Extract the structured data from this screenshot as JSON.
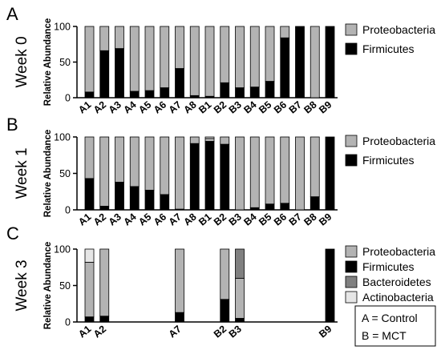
{
  "colors": {
    "Proteobacteria": "#b3b3b3",
    "Firmicutes": "#000000",
    "Bacteroidetes": "#808080",
    "Actinobacteria": "#e6e6e6"
  },
  "key": [
    "A = Control",
    "B = MCT"
  ],
  "chart_data": [
    {
      "type": "bar",
      "stacked": true,
      "panel": "A",
      "week_label": "Week 0",
      "ylabel": "Relative Abundance",
      "ylim": [
        0,
        100
      ],
      "yticks": [
        0,
        50,
        100
      ],
      "legend": "right",
      "categories": [
        "A1",
        "A2",
        "A3",
        "A4",
        "A5",
        "A6",
        "A7",
        "A8",
        "B1",
        "B2",
        "B3",
        "B4",
        "B5",
        "B6",
        "B7",
        "B8",
        "B9"
      ],
      "series": [
        {
          "name": "Firmicutes",
          "values": [
            8,
            66,
            69,
            9,
            10,
            14,
            41,
            3,
            2,
            21,
            14,
            15,
            23,
            84,
            100,
            0,
            100
          ]
        },
        {
          "name": "Proteobacteria",
          "values": [
            92,
            34,
            31,
            91,
            90,
            86,
            59,
            97,
            98,
            79,
            86,
            85,
            77,
            16,
            0,
            100,
            0
          ]
        }
      ]
    },
    {
      "type": "bar",
      "stacked": true,
      "panel": "B",
      "week_label": "Week 1",
      "ylabel": "Relative Abundance",
      "ylim": [
        0,
        100
      ],
      "yticks": [
        0,
        50,
        100
      ],
      "legend": "right",
      "categories": [
        "A1",
        "A2",
        "A3",
        "A4",
        "A5",
        "A6",
        "A7",
        "A8",
        "B1",
        "B2",
        "B3",
        "B4",
        "B5",
        "B6",
        "B7",
        "B8",
        "B9"
      ],
      "series": [
        {
          "name": "Firmicutes",
          "values": [
            43,
            5,
            38,
            32,
            27,
            21,
            1,
            91,
            94,
            90,
            0,
            3,
            8,
            9,
            0,
            18,
            100
          ]
        },
        {
          "name": "Proteobacteria",
          "values": [
            57,
            95,
            62,
            68,
            73,
            79,
            99,
            9,
            4,
            10,
            100,
            97,
            92,
            91,
            100,
            82,
            0
          ]
        },
        {
          "name": "Actinobacteria",
          "values": [
            0,
            0,
            0,
            0,
            0,
            0,
            0,
            0,
            2,
            0,
            0,
            0,
            0,
            0,
            0,
            0,
            0
          ]
        }
      ]
    },
    {
      "type": "bar",
      "stacked": true,
      "panel": "C",
      "week_label": "Week 3",
      "ylabel": "Relative Abundance",
      "ylim": [
        0,
        100
      ],
      "yticks": [
        0,
        50,
        100
      ],
      "legend": "right",
      "categories": [
        "A1",
        "A2",
        "A7",
        "B2",
        "B3",
        "B9"
      ],
      "slots": [
        0,
        1,
        6,
        9,
        10,
        16
      ],
      "series": [
        {
          "name": "Firmicutes",
          "values": [
            7,
            8,
            13,
            31,
            5,
            100
          ]
        },
        {
          "name": "Proteobacteria",
          "values": [
            75,
            92,
            87,
            69,
            55,
            0
          ]
        },
        {
          "name": "Bacteroidetes",
          "values": [
            0,
            0,
            0,
            0,
            40,
            0
          ]
        },
        {
          "name": "Actinobacteria",
          "values": [
            18,
            0,
            0,
            0,
            0,
            0
          ]
        }
      ]
    }
  ]
}
